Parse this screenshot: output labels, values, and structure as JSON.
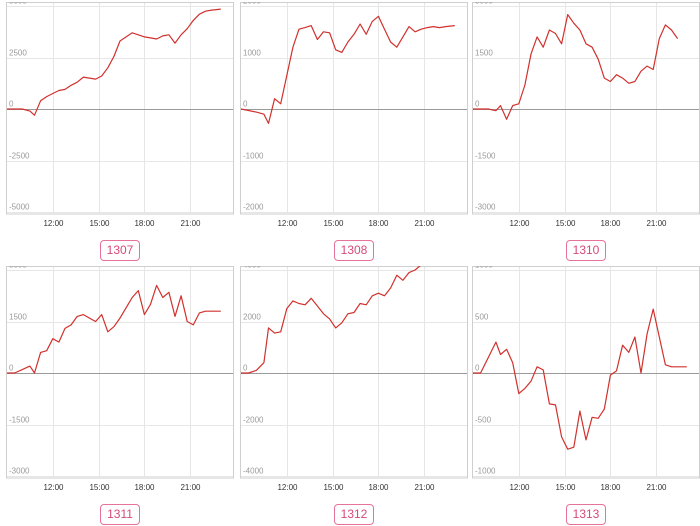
{
  "line_color": "#d0312d",
  "grid_color": "#e6e6e6",
  "zero_color": "#9a9a9a",
  "chart_data": [
    {
      "type": "line",
      "label": "1307",
      "x_hours": [
        9.0,
        9.5,
        10.0,
        10.5,
        10.8,
        11.2,
        11.6,
        12.0,
        12.4,
        12.8,
        13.2,
        13.6,
        14.0,
        14.4,
        14.8,
        15.2,
        15.6,
        16.0,
        16.4,
        16.8,
        17.2,
        17.6,
        18.0,
        18.4,
        18.8,
        19.2,
        19.6,
        20.0,
        20.4,
        20.8,
        21.2,
        21.6,
        22.0,
        22.4,
        23.0
      ],
      "values": [
        0,
        0,
        0,
        -100,
        -300,
        400,
        600,
        750,
        900,
        950,
        1150,
        1300,
        1550,
        1500,
        1450,
        1600,
        2000,
        2550,
        3300,
        3500,
        3700,
        3600,
        3500,
        3450,
        3400,
        3550,
        3600,
        3200,
        3600,
        3900,
        4300,
        4600,
        4750,
        4800,
        4850
      ],
      "y_ticks": [
        5000,
        2500,
        0,
        -2500,
        -5000
      ],
      "y_tick_labels": [
        "5000",
        "2500",
        "0",
        "-2500",
        "-5000"
      ],
      "ylim": [
        -5000,
        5000
      ],
      "x_ticks": [
        12,
        15,
        18,
        21
      ],
      "x_tick_labels": [
        "12:00",
        "15:00",
        "18:00",
        "21:00"
      ]
    },
    {
      "type": "line",
      "label": "1308",
      "x_hours": [
        9.0,
        9.5,
        10.0,
        10.5,
        10.8,
        11.2,
        11.6,
        12.0,
        12.4,
        12.8,
        13.2,
        13.6,
        14.0,
        14.4,
        14.8,
        15.2,
        15.6,
        16.0,
        16.4,
        16.8,
        17.2,
        17.6,
        18.0,
        18.4,
        18.8,
        19.2,
        19.6,
        20.0,
        20.4,
        20.8,
        21.2,
        21.6,
        22.0,
        22.4,
        23.0
      ],
      "values": [
        0,
        -30,
        -60,
        -100,
        -280,
        200,
        100,
        650,
        1200,
        1550,
        1580,
        1620,
        1350,
        1500,
        1480,
        1150,
        1100,
        1300,
        1450,
        1650,
        1450,
        1700,
        1800,
        1550,
        1300,
        1200,
        1400,
        1600,
        1500,
        1550,
        1580,
        1600,
        1580,
        1600,
        1620
      ],
      "y_ticks": [
        2000,
        1000,
        0,
        -1000,
        -2000
      ],
      "y_tick_labels": [
        "2000",
        "1000",
        "0",
        "-1000",
        "-2000"
      ],
      "ylim": [
        -2000,
        2000
      ],
      "x_ticks": [
        12,
        15,
        18,
        21
      ],
      "x_tick_labels": [
        "12:00",
        "15:00",
        "18:00",
        "21:00"
      ]
    },
    {
      "type": "line",
      "label": "1310",
      "x_hours": [
        9.0,
        9.5,
        10.0,
        10.5,
        10.8,
        11.2,
        11.6,
        12.0,
        12.4,
        12.8,
        13.2,
        13.6,
        14.0,
        14.4,
        14.8,
        15.2,
        15.6,
        16.0,
        16.4,
        16.8,
        17.2,
        17.6,
        18.0,
        18.4,
        18.8,
        19.2,
        19.6,
        20.0,
        20.4,
        20.8,
        21.2,
        21.6,
        22.0,
        22.4
      ],
      "values": [
        0,
        0,
        0,
        -50,
        100,
        -300,
        100,
        150,
        700,
        1600,
        2100,
        1800,
        2300,
        2200,
        1900,
        2750,
        2500,
        2300,
        1900,
        1800,
        1450,
        900,
        800,
        1000,
        900,
        750,
        800,
        1100,
        1250,
        1150,
        2050,
        2450,
        2300,
        2050
      ],
      "y_ticks": [
        3000,
        1500,
        0,
        -1500,
        -3000
      ],
      "y_tick_labels": [
        "3000",
        "1500",
        "0",
        "-1500",
        "-3000"
      ],
      "ylim": [
        -3000,
        3000
      ],
      "x_ticks": [
        12,
        15,
        18,
        21
      ],
      "x_tick_labels": [
        "12:00",
        "15:00",
        "18:00",
        "21:00"
      ]
    },
    {
      "type": "line",
      "label": "1311",
      "x_hours": [
        9.0,
        9.5,
        10.0,
        10.5,
        10.8,
        11.2,
        11.6,
        12.0,
        12.4,
        12.8,
        13.2,
        13.6,
        14.0,
        14.4,
        14.8,
        15.2,
        15.6,
        16.0,
        16.4,
        16.8,
        17.2,
        17.6,
        18.0,
        18.4,
        18.8,
        19.2,
        19.6,
        20.0,
        20.4,
        20.8,
        21.2,
        21.6,
        22.0,
        22.4,
        23.0
      ],
      "values": [
        0,
        0,
        100,
        200,
        0,
        600,
        650,
        1000,
        900,
        1300,
        1400,
        1650,
        1700,
        1600,
        1500,
        1700,
        1200,
        1350,
        1600,
        1900,
        2200,
        2400,
        1700,
        2000,
        2550,
        2200,
        2350,
        1650,
        2250,
        1500,
        1400,
        1750,
        1800,
        1800,
        1800
      ],
      "y_ticks": [
        3000,
        1500,
        0,
        -1500,
        -3000
      ],
      "y_tick_labels": [
        "3000",
        "1500",
        "0",
        "-1500",
        "-3000"
      ],
      "ylim": [
        -3000,
        3000
      ],
      "x_ticks": [
        12,
        15,
        18,
        21
      ],
      "x_tick_labels": [
        "12:00",
        "15:00",
        "18:00",
        "21:00"
      ]
    },
    {
      "type": "line",
      "label": "1312",
      "x_hours": [
        9.0,
        9.5,
        10.0,
        10.5,
        10.8,
        11.2,
        11.6,
        12.0,
        12.4,
        12.8,
        13.2,
        13.6,
        14.0,
        14.4,
        14.8,
        15.2,
        15.6,
        16.0,
        16.4,
        16.8,
        17.2,
        17.6,
        18.0,
        18.4,
        18.8,
        19.2,
        19.6,
        20.0,
        20.4,
        20.8,
        21.2,
        21.6,
        22.0,
        22.4,
        23.0
      ],
      "values": [
        0,
        0,
        100,
        400,
        1750,
        1550,
        1600,
        2500,
        2800,
        2700,
        2650,
        2900,
        2600,
        2300,
        2100,
        1750,
        1950,
        2300,
        2350,
        2700,
        2650,
        3000,
        3100,
        3000,
        3300,
        3800,
        3600,
        3900,
        4000,
        4200,
        4300,
        4250,
        4200,
        4200,
        4180
      ],
      "y_ticks": [
        4000,
        2000,
        0,
        -2000,
        -4000
      ],
      "y_tick_labels": [
        "4000",
        "2000",
        "0",
        "-2000",
        "-4000"
      ],
      "ylim": [
        -4000,
        4000
      ],
      "x_ticks": [
        12,
        15,
        18,
        21
      ],
      "x_tick_labels": [
        "12:00",
        "15:00",
        "18:00",
        "21:00"
      ]
    },
    {
      "type": "line",
      "label": "1313",
      "x_hours": [
        9.0,
        9.5,
        10.0,
        10.5,
        10.8,
        11.2,
        11.6,
        12.0,
        12.4,
        12.8,
        13.2,
        13.6,
        14.0,
        14.4,
        14.8,
        15.2,
        15.6,
        16.0,
        16.4,
        16.8,
        17.2,
        17.6,
        18.0,
        18.4,
        18.8,
        19.2,
        19.6,
        20.0,
        20.4,
        20.8,
        21.2,
        21.6,
        22.0,
        22.4,
        23.0
      ],
      "values": [
        0,
        0,
        150,
        300,
        180,
        230,
        100,
        -200,
        -150,
        -80,
        60,
        30,
        -300,
        -310,
        -620,
        -740,
        -720,
        -370,
        -650,
        -430,
        -440,
        -350,
        -20,
        20,
        270,
        200,
        350,
        0,
        380,
        620,
        350,
        80,
        60,
        60,
        60
      ],
      "y_ticks": [
        1000,
        500,
        0,
        -500,
        -1000
      ],
      "y_tick_labels": [
        "1000",
        "500",
        "0",
        "-500",
        "-1000"
      ],
      "ylim": [
        -1000,
        1000
      ],
      "x_ticks": [
        12,
        15,
        18,
        21
      ],
      "x_tick_labels": [
        "12:00",
        "15:00",
        "18:00",
        "21:00"
      ]
    }
  ]
}
